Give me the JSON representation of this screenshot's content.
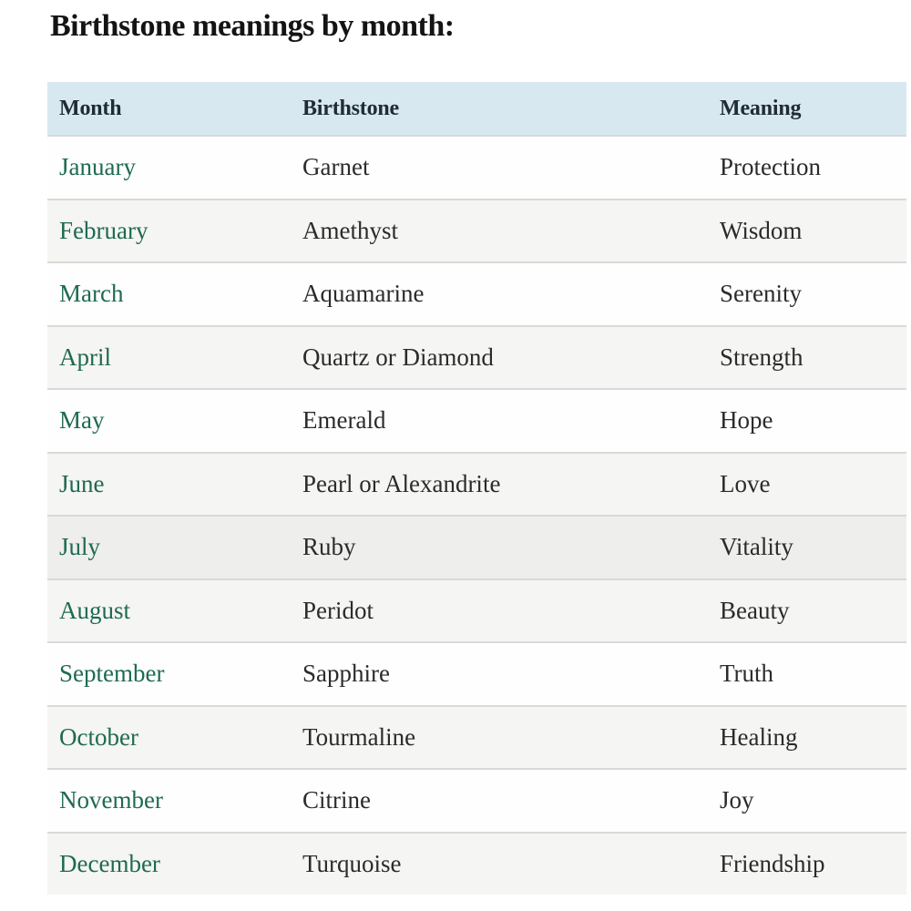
{
  "title": "Birthstone meanings by month:",
  "colors": {
    "header_bg": "#d8e8f1",
    "month_text_green": "#1e6a52",
    "body_text": "#2b2b2b",
    "row_alt_bg": "#f5f5f3",
    "row_highlight_bg": "#eeeeec",
    "divider": "#dad9d7"
  },
  "table": {
    "headers": [
      "Month",
      "Birthstone",
      "Meaning"
    ],
    "rows": [
      {
        "month": "January",
        "birthstone": "Garnet",
        "meaning": "Protection"
      },
      {
        "month": "February",
        "birthstone": "Amethyst",
        "meaning": "Wisdom"
      },
      {
        "month": "March",
        "birthstone": "Aquamarine",
        "meaning": "Serenity"
      },
      {
        "month": "April",
        "birthstone": "Quartz or Diamond",
        "meaning": "Strength"
      },
      {
        "month": "May",
        "birthstone": "Emerald",
        "meaning": "Hope"
      },
      {
        "month": "June",
        "birthstone": "Pearl or Alexandrite",
        "meaning": "Love"
      },
      {
        "month": "July",
        "birthstone": "Ruby",
        "meaning": "Vitality"
      },
      {
        "month": "August",
        "birthstone": "Peridot",
        "meaning": "Beauty"
      },
      {
        "month": "September",
        "birthstone": "Sapphire",
        "meaning": "Truth"
      },
      {
        "month": "October",
        "birthstone": "Tourmaline",
        "meaning": "Healing"
      },
      {
        "month": "November",
        "birthstone": "Citrine",
        "meaning": "Joy"
      },
      {
        "month": "December",
        "birthstone": "Turquoise",
        "meaning": "Friendship"
      }
    ]
  }
}
